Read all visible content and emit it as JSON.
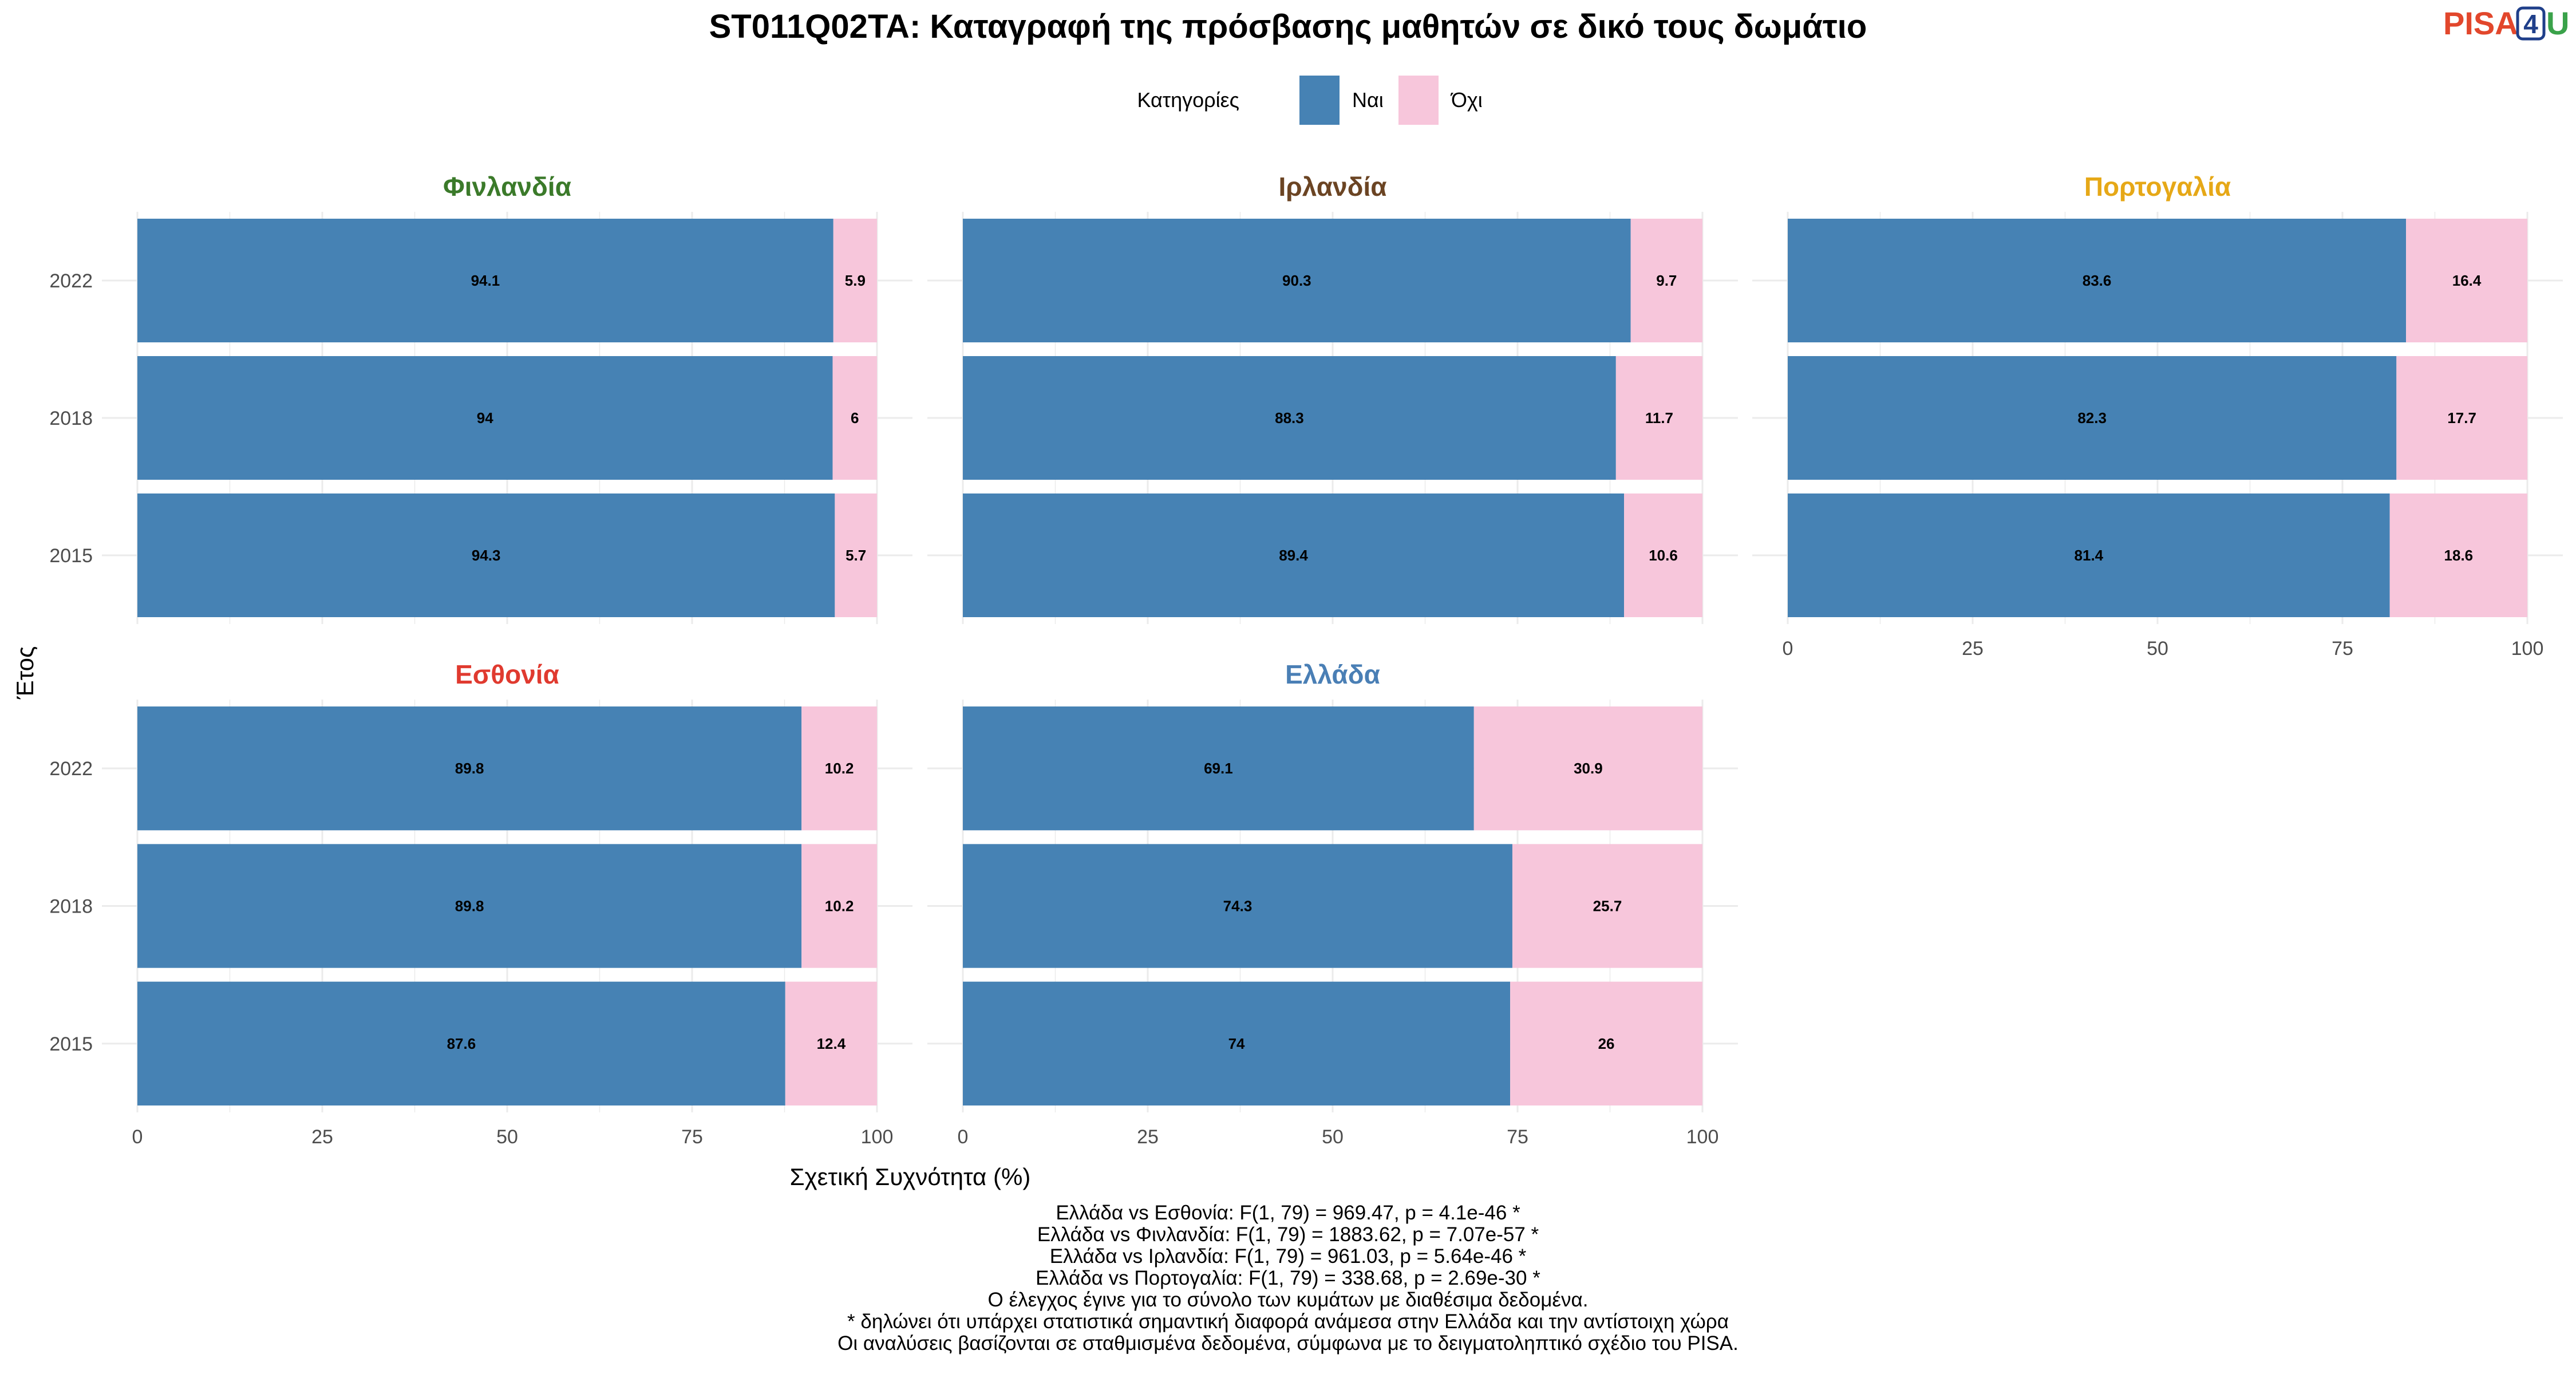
{
  "logo": {
    "pisa": "PISA",
    "four": "4",
    "u": "U"
  },
  "colors": {
    "yes": "#4682B4",
    "no": "#F7C6DB",
    "grid": "#EBEBEB"
  },
  "chart_data": {
    "type": "bar",
    "orientation": "horizontal-stacked",
    "title": "ST011Q02TA: Καταγραφή της πρόσβασης μαθητών σε δικό τους δωμάτιο",
    "legend": {
      "title": "Κατηγορίες",
      "placement": "top",
      "items": [
        "Ναι",
        "Όχι"
      ]
    },
    "ylabel": "Έτος",
    "xlabel": "Σχετική Συχνότητα (%)",
    "xlim": [
      0,
      100
    ],
    "xticks": [
      0,
      25,
      50,
      75,
      100
    ],
    "categories": [
      "2022",
      "2018",
      "2015"
    ],
    "panels": [
      {
        "name": "Φινλανδία",
        "color": "#3B7A2A",
        "series": [
          {
            "name": "Ναι",
            "values": [
              94.1,
              94,
              94.3
            ]
          },
          {
            "name": "Όχι",
            "values": [
              5.9,
              6,
              5.7
            ]
          }
        ]
      },
      {
        "name": "Ιρλανδία",
        "color": "#6B4423",
        "series": [
          {
            "name": "Ναι",
            "values": [
              90.3,
              88.3,
              89.4
            ]
          },
          {
            "name": "Όχι",
            "values": [
              9.7,
              11.7,
              10.6
            ]
          }
        ]
      },
      {
        "name": "Πορτογαλία",
        "color": "#E6A817",
        "series": [
          {
            "name": "Ναι",
            "values": [
              83.6,
              82.3,
              81.4
            ]
          },
          {
            "name": "Όχι",
            "values": [
              16.4,
              17.7,
              18.6
            ]
          }
        ]
      },
      {
        "name": "Εσθονία",
        "color": "#E03A2F",
        "series": [
          {
            "name": "Ναι",
            "values": [
              89.8,
              89.8,
              87.6
            ]
          },
          {
            "name": "Όχι",
            "values": [
              10.2,
              10.2,
              12.4
            ]
          }
        ]
      },
      {
        "name": "Ελλάδα",
        "color": "#4A7FB5",
        "series": [
          {
            "name": "Ναι",
            "values": [
              69.1,
              74.3,
              74
            ]
          },
          {
            "name": "Όχι",
            "values": [
              30.9,
              25.7,
              26
            ]
          }
        ]
      }
    ],
    "notes": [
      "Ελλάδα vs Εσθονία: F(1, 79) = 969.47, p = 4.1e-46 *",
      "Ελλάδα vs Φινλανδία: F(1, 79) = 1883.62, p = 7.07e-57 *",
      "Ελλάδα vs Ιρλανδία: F(1, 79) = 961.03, p = 5.64e-46 *",
      "Ελλάδα vs Πορτογαλία: F(1, 79) = 338.68, p = 2.69e-30 *",
      "Ο έλεγχος έγινε για το σύνολο των κυμάτων με διαθέσιμα δεδομένα.",
      "* δηλώνει ότι υπάρχει στατιστικά σημαντική διαφορά ανάμεσα στην Ελλάδα και την αντίστοιχη χώρα",
      "Οι αναλύσεις βασίζονται σε σταθμισμένα δεδομένα, σύμφωνα με το δειγματοληπτικό σχέδιο του PISA."
    ]
  }
}
